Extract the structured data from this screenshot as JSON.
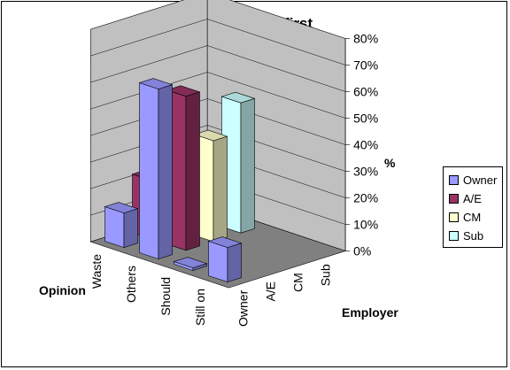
{
  "chart_data": {
    "type": "bar",
    "title": "Useful after first",
    "x_axis_label": "Opinion",
    "series_axis_label": "Employer",
    "y_axis_label": "%",
    "categories": [
      "Still on",
      "Should",
      "Others",
      "Waste"
    ],
    "series": [
      {
        "name": "Owner",
        "values": [
          13,
          1,
          64,
          13
        ],
        "color": "#9999ff"
      },
      {
        "name": "A/E",
        "values": [
          0,
          0,
          58,
          22
        ],
        "color": "#993366"
      },
      {
        "name": "CM",
        "values": [
          0,
          0,
          38,
          19
        ],
        "color": "#ffffcc"
      },
      {
        "name": "Sub",
        "values": [
          0,
          0,
          49,
          26
        ],
        "color": "#ccffff"
      }
    ],
    "ylim": [
      0,
      80
    ],
    "y_ticks": [
      "0%",
      "10%",
      "20%",
      "30%",
      "40%",
      "50%",
      "60%",
      "70%",
      "80%"
    ],
    "gridlines": true,
    "legend_position": "right"
  }
}
